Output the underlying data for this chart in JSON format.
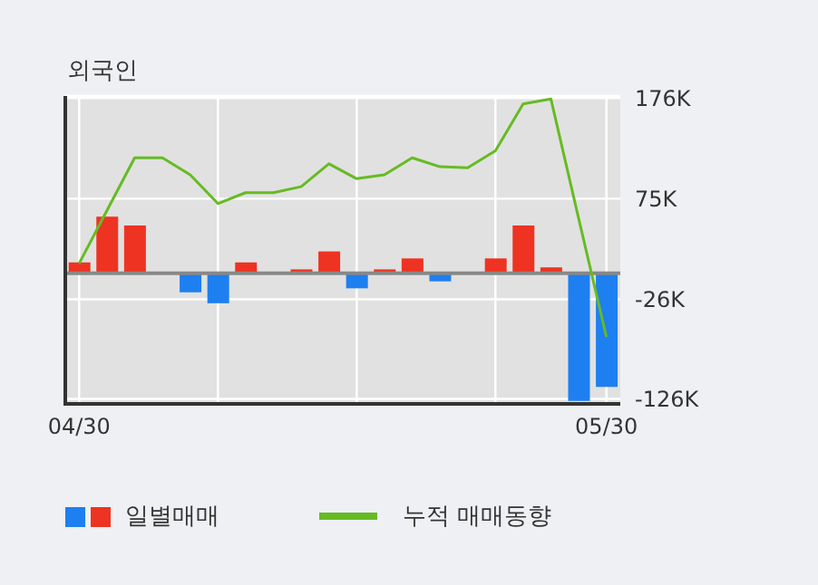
{
  "chart_data": {
    "type": "bar",
    "title": "외국인",
    "categories": [
      "04/30",
      null,
      null,
      null,
      null,
      null,
      null,
      null,
      null,
      null,
      null,
      null,
      null,
      null,
      null,
      null,
      null,
      null,
      null,
      "05/30"
    ],
    "series": [
      {
        "name": "일별매매",
        "colors": [
          "#ee3322",
          "#ee3322",
          "#ee3322",
          "#ee3322",
          "#1e7ff0",
          "#1e7ff0",
          "#ee3322",
          "#ee3322",
          "#ee3322",
          "#ee3322",
          "#1e7ff0",
          "#ee3322",
          "#ee3322",
          "#1e7ff0",
          "#ee3322",
          "#ee3322",
          "#ee3322",
          "#ee3322",
          "#1e7ff0",
          "#1e7ff0"
        ],
        "values": [
          11,
          57,
          48,
          null,
          -19,
          -30,
          11,
          null,
          4,
          22,
          -15,
          4,
          15,
          -8,
          null,
          15,
          48,
          6,
          -128,
          -114
        ]
      },
      {
        "name": "누적 매매동향",
        "type": "line",
        "color": "#66bb22",
        "values": [
          10,
          63,
          116,
          116,
          99,
          70,
          81,
          81,
          87,
          110,
          95,
          99,
          116,
          107,
          106,
          123,
          170,
          175,
          55,
          -64
        ]
      }
    ],
    "ylim": [
      -131,
      178
    ],
    "yticks": [
      {
        "value": 176,
        "label": "176K"
      },
      {
        "value": 75,
        "label": "75K"
      },
      {
        "value": -26,
        "label": "-26K"
      },
      {
        "value": -126,
        "label": "-126K"
      }
    ],
    "grid": true,
    "legend": "bottom",
    "ref_lines": [
      {
        "axis": "y",
        "value": 0,
        "color": "#888888"
      }
    ]
  }
}
